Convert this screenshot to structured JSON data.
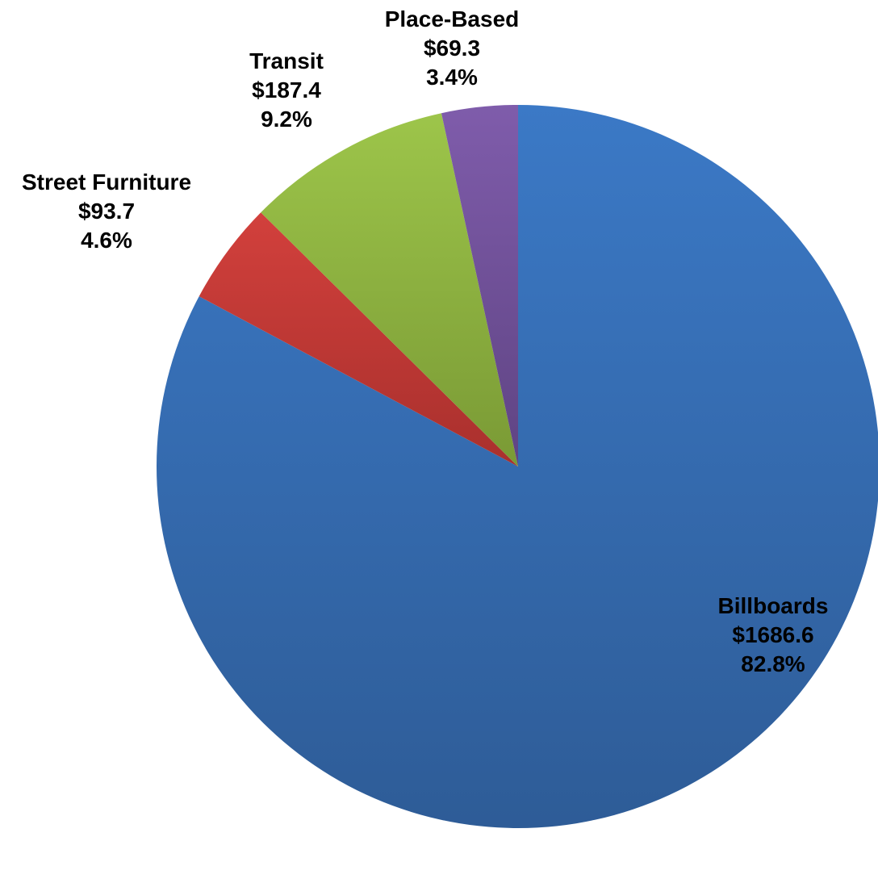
{
  "chart_data": {
    "type": "pie",
    "title": "",
    "start_angle_deg": 0,
    "direction": "clockwise",
    "slices": [
      {
        "name": "Billboards",
        "value": 1686.6,
        "value_label": "$1686.6",
        "percent_label": "82.8%",
        "color": "#3B79C6",
        "color_dark": "#2E5C97"
      },
      {
        "name": "Street Furniture",
        "value": 93.7,
        "value_label": "$93.7",
        "percent_label": "4.6%",
        "color": "#D2403C",
        "color_dark": "#A9302D"
      },
      {
        "name": "Transit",
        "value": 187.4,
        "value_label": "$187.4",
        "percent_label": "9.2%",
        "color": "#9DC54A",
        "color_dark": "#7A9A35"
      },
      {
        "name": "Place-Based",
        "value": 69.3,
        "value_label": "$69.3",
        "percent_label": "3.4%",
        "color": "#7F5CAB",
        "color_dark": "#5F4483"
      }
    ]
  }
}
